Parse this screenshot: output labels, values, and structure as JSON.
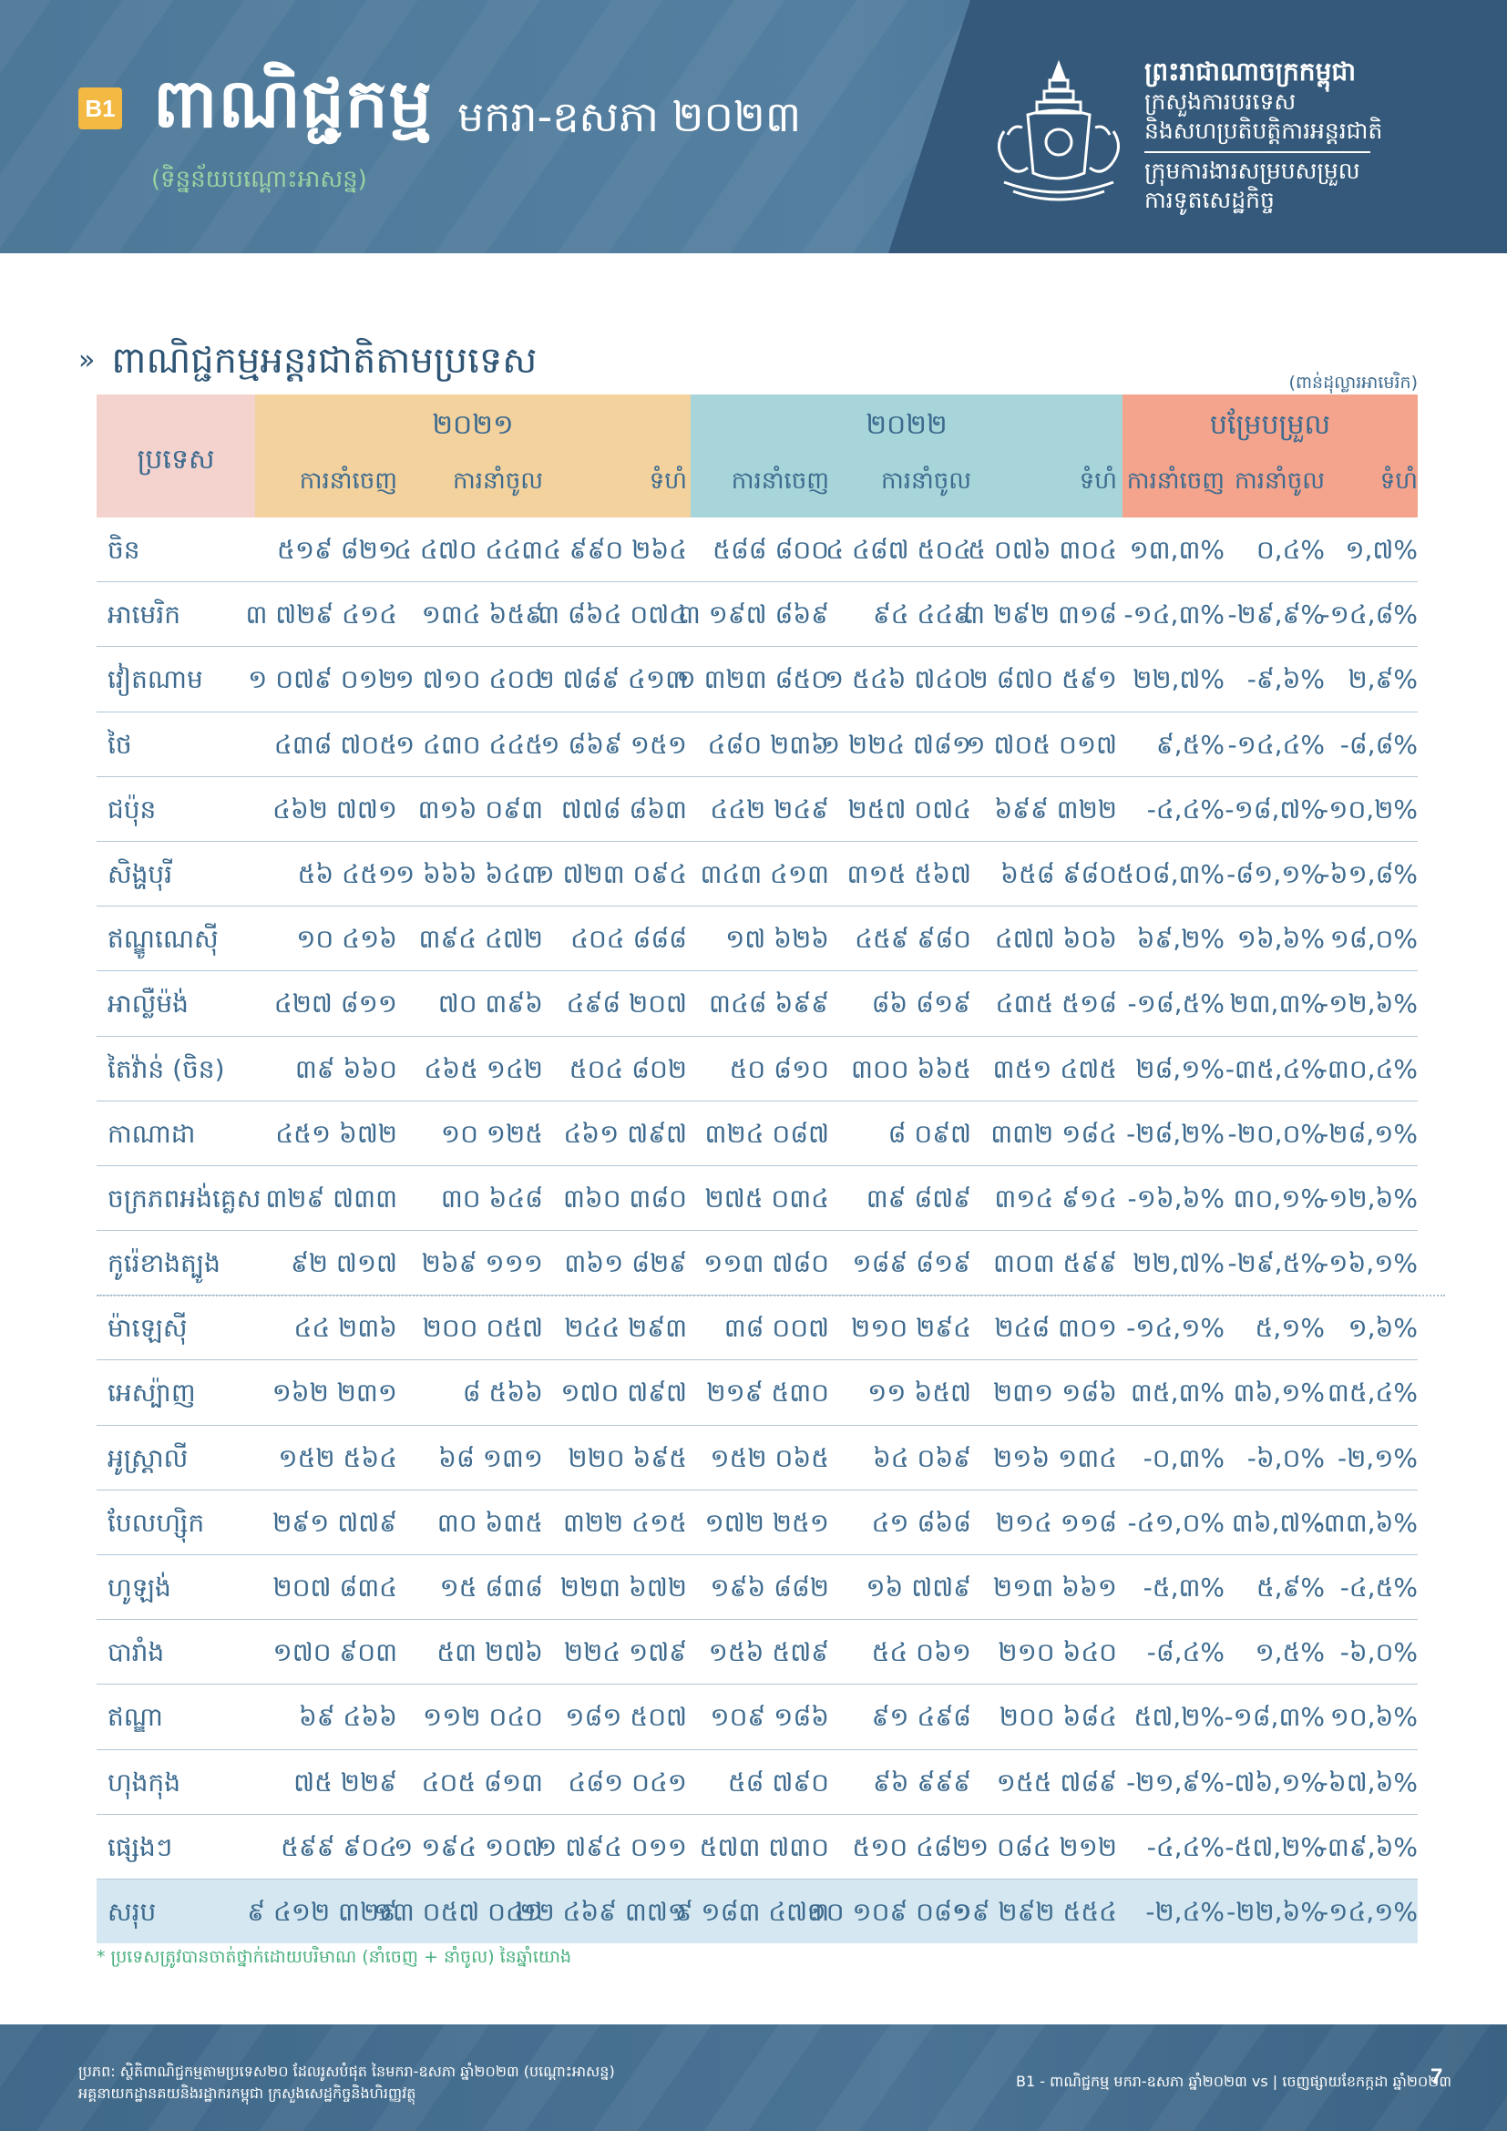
{
  "header": {
    "badge": "B1",
    "title": "ពាណិជ្ជកម្ម",
    "period": "មករា-ឧសភា ២០២៣",
    "subtitle": "(ទិន្នន័យបណ្ដោះអាសន្ន)",
    "ministry_lines": [
      "ព្រះរាជាណាចក្រកម្ពុជា",
      "ក្រសួងការបរទេស",
      "និងសហប្រតិបត្តិការអន្តរជាតិ",
      "ក្រុមការងារសម្របសម្រួល",
      "ការទូតសេដ្ឋកិច្ច"
    ]
  },
  "section": {
    "title": "ពាណិជ្ជកម្មអន្តរជាតិតាមប្រទេស",
    "unit": "(ពាន់ដុល្លារអាមេរិក)"
  },
  "table": {
    "country_header": "ប្រទេស",
    "groups": [
      "២០២១",
      "២០២២",
      "បម្រែបម្រួល"
    ],
    "subheaders": [
      "ការនាំចេញ",
      "ការនាំចូល",
      "ទំហំ",
      "ការនាំចេញ",
      "ការនាំចូល",
      "ទំហំ",
      "ការនាំចេញ",
      "ការនាំចូល",
      "ទំហំ"
    ],
    "rows": [
      {
        "name": "ចិន",
        "v": [
          "៥១៩ ៨២១",
          "៤ ៤៧០ ៤៤៣",
          "៤ ៩៩០ ២៦៤",
          "៥៨៨ ៨០០",
          "៤ ៤៨៧ ៥០៤",
          "៥ ០៧៦ ៣០៤",
          "១៣,៣%",
          "០,៤%",
          "១,៧%"
        ]
      },
      {
        "name": "អាមេរិក",
        "v": [
          "៣ ៧២៩ ៤១៤",
          "១៣៤ ៦៥៩",
          "៣ ៨៦៤ ០៧៤",
          "៣ ១៩៧ ៨៦៩",
          "៩៤ ៤៤៩",
          "៣ ២៩២ ៣១៨",
          "-១៤,៣%",
          "-២៩,៩%",
          "-១៤,៨%"
        ]
      },
      {
        "name": "វៀតណាម",
        "v": [
          "១ ០៧៩ ០១២",
          "១ ៧១០ ៤០០",
          "២ ៧៨៩ ៤១៣",
          "១ ៣២៣ ៨៥០",
          "១ ៥៤៦ ៧៤០",
          "២ ៨៧០ ៥៩១",
          "២២,៧%",
          "-៩,៦%",
          "២,៩%"
        ]
      },
      {
        "name": "ថៃ",
        "v": [
          "៤៣៨ ៧០៥",
          "១ ៤៣០ ៤៤៥",
          "១ ៨៦៩ ១៥១",
          "៤៨០ ២៣៦",
          "១ ២២៤ ៧៨១",
          "១ ៧០៥ ០១៧",
          "៩,៥%",
          "-១៤,៤%",
          "-៨,៨%"
        ]
      },
      {
        "name": "ជប៉ុន",
        "v": [
          "៤៦២ ៧៧១",
          "៣១៦ ០៩៣",
          "៧៧៨ ៨៦៣",
          "៤៤២ ២៤៩",
          "២៥៧ ០៧៤",
          "៦៩៩ ៣២២",
          "-៤,៤%",
          "-១៨,៧%",
          "-១០,២%"
        ]
      },
      {
        "name": "សិង្ហបុរី",
        "v": [
          "៥៦ ៤៥១",
          "១ ៦៦៦ ៦៤៣",
          "១ ៧២៣ ០៩៤",
          "៣៤៣ ៤១៣",
          "៣១៥ ៥៦៧",
          "៦៥៨ ៩៨០",
          "៥០៨,៣%",
          "-៨១,១%",
          "-៦១,៨%"
        ]
      },
      {
        "name": "ឥណ្ឌូណេស៊ី",
        "v": [
          "១០ ៤១៦",
          "៣៩៤ ៤៧២",
          "៤០៤ ៨៨៨",
          "១៧ ៦២៦",
          "៤៥៩ ៩៨០",
          "៤៧៧ ៦០៦",
          "៦៩,២%",
          "១៦,៦%",
          "១៨,០%"
        ]
      },
      {
        "name": "អាល្លឺម៉ង់",
        "v": [
          "៤២៧ ៨១១",
          "៧០ ៣៩៦",
          "៤៩៨ ២០៧",
          "៣៤៨ ៦៩៩",
          "៨៦ ៨១៩",
          "៤៣៥ ៥១៨",
          "-១៨,៥%",
          "២៣,៣%",
          "-១២,៦%"
        ]
      },
      {
        "name": "តៃវ៉ាន់ (ចិន)",
        "v": [
          "៣៩ ៦៦០",
          "៤៦៥ ១៤២",
          "៥០៤ ៨០២",
          "៥០ ៨១០",
          "៣០០ ៦៦៥",
          "៣៥១ ៤៧៥",
          "២៨,១%",
          "-៣៥,៤%",
          "-៣០,៤%"
        ]
      },
      {
        "name": "កាណាដា",
        "v": [
          "៤៥១ ៦៧២",
          "១០ ១២៥",
          "៤៦១ ៧៩៧",
          "៣២៤ ០៨៧",
          "៨ ០៩៧",
          "៣៣២ ១៨៤",
          "-២៨,២%",
          "-២០,០%",
          "-២៨,១%"
        ]
      },
      {
        "name": "ចក្រភពអង់គ្លេស",
        "v": [
          "៣២៩ ៧៣៣",
          "៣០ ៦៤៨",
          "៣៦០ ៣៨០",
          "២៧៥ ០៣៤",
          "៣៩ ៨៧៩",
          "៣១៤ ៩១៤",
          "-១៦,៦%",
          "៣០,១%",
          "-១២,៦%"
        ]
      },
      {
        "name": "កូរ៉េខាងត្បូង",
        "v": [
          "៩២ ៧១៧",
          "២៦៩ ១១១",
          "៣៦១ ៨២៩",
          "១១៣ ៧៨០",
          "១៨៩ ៨១៩",
          "៣០៣ ៥៩៩",
          "២២,៧%",
          "-២៩,៥%",
          "-១៦,១%"
        ]
      },
      {
        "name": "ម៉ាឡេស៊ី",
        "v": [
          "៤៤ ២៣៦",
          "២០០ ០៥៧",
          "២៤៤ ២៩៣",
          "៣៨ ០០៧",
          "២១០ ២៩៤",
          "២៤៨ ៣០១",
          "-១៤,១%",
          "៥,១%",
          "១,៦%"
        ]
      },
      {
        "name": "អេស្ប៉ាញ",
        "v": [
          "១៦២ ២៣១",
          "៨ ៥៦៦",
          "១៧០ ៧៩៧",
          "២១៩ ៥៣០",
          "១១ ៦៥៧",
          "២៣១ ១៨៦",
          "៣៥,៣%",
          "៣៦,១%",
          "៣៥,៤%"
        ]
      },
      {
        "name": "អូស្ត្រាលី",
        "v": [
          "១៥២ ៥៦៤",
          "៦៨ ១៣១",
          "២២០ ៦៩៥",
          "១៥២ ០៦៥",
          "៦៤ ០៦៩",
          "២១៦ ១៣៤",
          "-០,៣%",
          "-៦,០%",
          "-២,១%"
        ]
      },
      {
        "name": "បែលហ្ស៊ិក",
        "v": [
          "២៩១ ៧៧៩",
          "៣០ ៦៣៥",
          "៣២២ ៤១៥",
          "១៧២ ២៥១",
          "៤១ ៨៦៨",
          "២១៤ ១១៨",
          "-៤១,០%",
          "៣៦,៧%",
          "-៣៣,៦%"
        ]
      },
      {
        "name": "ហូឡង់",
        "v": [
          "២០៧ ៨៣៤",
          "១៥ ៨៣៨",
          "២២៣ ៦៧២",
          "១៩៦ ៨៨២",
          "១៦ ៧៧៩",
          "២១៣ ៦៦១",
          "-៥,៣%",
          "៥,៩%",
          "-៤,៥%"
        ]
      },
      {
        "name": "បារាំង",
        "v": [
          "១៧០ ៩០៣",
          "៥៣ ២៧៦",
          "២២៤ ១៧៩",
          "១៥៦ ៥៧៩",
          "៥៤ ០៦១",
          "២១០ ៦៤០",
          "-៨,៤%",
          "១,៥%",
          "-៦,០%"
        ]
      },
      {
        "name": "ឥណ្ឌា",
        "v": [
          "៦៩ ៤៦៦",
          "១១២ ០៤០",
          "១៨១ ៥០៧",
          "១០៩ ១៨៦",
          "៩១ ៤៩៨",
          "២០០ ៦៨៤",
          "៥៧,២%",
          "-១៨,៣%",
          "១០,៦%"
        ]
      },
      {
        "name": "ហុងកុង",
        "v": [
          "៧៥ ២២៩",
          "៤០៥ ៨១៣",
          "៤៨១ ០៤១",
          "៥៨ ៧៩០",
          "៩៦ ៩៩៩",
          "១៥៥ ៧៨៩",
          "-២១,៩%",
          "-៧៦,១%",
          "-៦៧,៦%"
        ]
      },
      {
        "name": "ផ្សេងៗ",
        "v": [
          "៥៩៩ ៩០៤",
          "១ ១៩៤ ១០៧",
          "១ ៧៩៤ ០១១",
          "៥៧៣ ៧៣០",
          "៥១០ ៤៨២",
          "១ ០៨៤ ២១២",
          "-៤,៤%",
          "-៥៧,២%",
          "-៣៩,៦%"
        ]
      }
    ],
    "total": {
      "name": "សរុប",
      "v": [
        "៩ ៤១២ ៣២៩",
        "១៣ ០៥៧ ០៤១",
        "២២ ៤៦៩ ៣៧១",
        "៩ ១៨៣ ៤៧៣",
        "១០ ១០៩ ០៨១",
        "១៩ ២៩២ ៥៥៤",
        "-២,៤%",
        "-២២,៦%",
        "-១៤,១%"
      ]
    }
  },
  "footnote": "* ប្រទេសត្រូវបានចាត់ថ្នាក់ដោយបរិមាណ (នាំចេញ + នាំចូល) នៃឆ្នាំយោង",
  "footer": {
    "source_line1": "ប្រភព: ស្ថិតិពាណិជ្ជកម្មតាមប្រទេស២០ ដែលរូសបំផុត នៃមករា-ឧសភា ឆ្នាំ២០២៣ (បណ្ដោះអាសន្ន)",
    "source_line2": "អគ្គនាយកដ្ឋានគយនិងរដ្ឋាករកម្ពុជា ក្រសួងសេដ្ឋកិច្ចនិងហិរញ្ញវត្ថុ",
    "right_text": "B1 - ពាណិជ្ជកម្ម មករា-ឧសភា ឆ្នាំ២០២៣ vs | ចេញផ្សាយខែកក្កដា ឆ្នាំ២០២៣",
    "page": "7"
  }
}
